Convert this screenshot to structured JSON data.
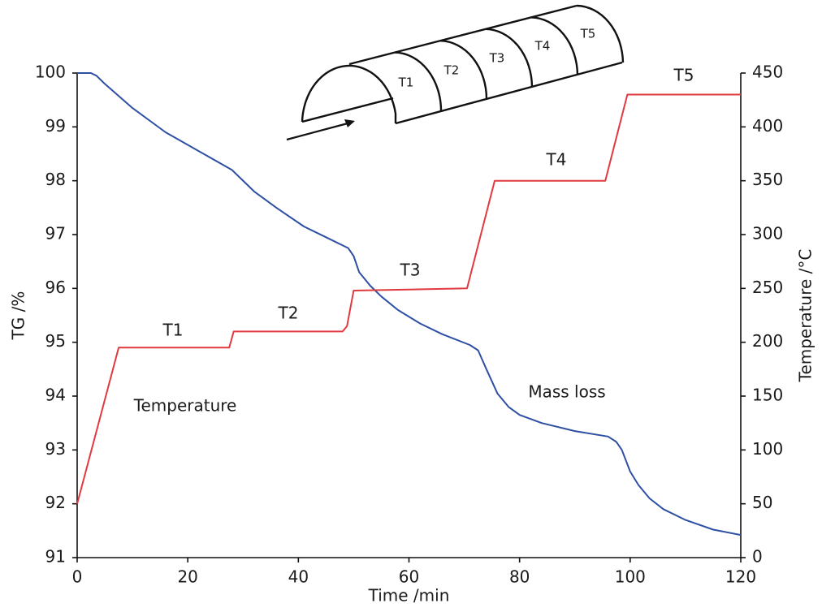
{
  "chart_data": {
    "type": "line",
    "xlabel": "Time /min",
    "ylabel": "TG /%",
    "y2label": "Temperature /°C",
    "xlim": [
      0,
      120
    ],
    "xticks": [
      0,
      20,
      40,
      60,
      80,
      100,
      120
    ],
    "ylim": [
      91,
      100
    ],
    "yticks": [
      91,
      92,
      93,
      94,
      95,
      96,
      97,
      98,
      99,
      100
    ],
    "y2lim": [
      0,
      450
    ],
    "y2ticks": [
      0,
      50,
      100,
      150,
      200,
      250,
      300,
      350,
      400,
      450
    ],
    "series": [
      {
        "name": "Mass loss",
        "color": "#2e4fa3",
        "x": [
          0,
          2.5,
          3.5,
          5,
          10,
          16,
          22,
          28,
          32,
          36,
          41,
          45,
          49,
          50,
          51,
          53,
          55,
          58,
          62,
          66,
          71,
          72.5,
          74,
          76,
          78,
          80,
          84,
          90,
          96,
          97.5,
          98.5,
          100,
          101.5,
          103.5,
          106,
          110,
          115,
          120
        ],
        "values": [
          100,
          100,
          99.95,
          99.8,
          99.35,
          98.9,
          98.55,
          98.2,
          97.8,
          97.5,
          97.15,
          96.95,
          96.75,
          96.6,
          96.3,
          96.05,
          95.85,
          95.6,
          95.35,
          95.15,
          94.95,
          94.85,
          94.5,
          94.05,
          93.8,
          93.65,
          93.5,
          93.35,
          93.25,
          93.15,
          93.0,
          92.6,
          92.35,
          92.1,
          91.9,
          91.7,
          91.52,
          91.42
        ]
      },
      {
        "name": "Temperature",
        "color": "#e0393e",
        "axis": "y2",
        "x": [
          0,
          7.5,
          27.5,
          28.3,
          48,
          48.8,
          50,
          70.5,
          75.5,
          95.5,
          99.5,
          120
        ],
        "values": [
          50,
          195,
          195,
          210,
          210,
          215,
          248,
          250,
          350,
          350,
          430,
          430
        ]
      }
    ],
    "annotations": [
      {
        "text": "T1",
        "color": "#1a1a1a"
      },
      {
        "text": "T2",
        "color": "#a0403a"
      },
      {
        "text": "T3",
        "color": "#9b2d9b"
      },
      {
        "text": "T4",
        "color": "#f0a020"
      },
      {
        "text": "T5",
        "color": "#e0393e"
      },
      {
        "text": "Temperature",
        "color": "#e0393e"
      },
      {
        "text": "Mass loss",
        "color": "#2e4fa3"
      }
    ]
  },
  "diagram": {
    "labels": [
      "T1",
      "T2",
      "T3",
      "T4",
      "T5"
    ]
  }
}
